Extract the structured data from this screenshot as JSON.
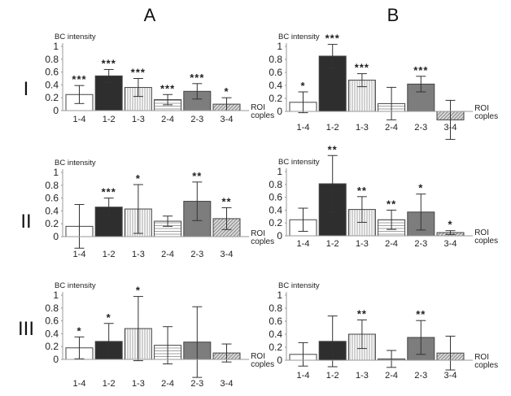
{
  "figure": {
    "column_labels": [
      "A",
      "B"
    ],
    "row_labels": [
      "I",
      "II",
      "III"
    ]
  },
  "chart_data": [
    {
      "type": "bar",
      "panel": "A-I",
      "column": "A",
      "row": "I",
      "ylabel": "BC intensity",
      "xlabel": [
        "ROI",
        "coples"
      ],
      "ylim": [
        0,
        1
      ],
      "yticks": [
        "0",
        "0.2",
        "0.4",
        "0.6",
        "0.8",
        "1"
      ],
      "categories": [
        "1-4",
        "1-2",
        "1-3",
        "2-4",
        "2-3",
        "3-4"
      ],
      "values": [
        0.25,
        0.54,
        0.36,
        0.17,
        0.3,
        0.1
      ],
      "error": [
        0.14,
        0.1,
        0.14,
        0.08,
        0.12,
        0.1
      ],
      "significance": [
        "***",
        "***",
        "***",
        "***",
        "***",
        "*"
      ]
    },
    {
      "type": "bar",
      "panel": "B-I",
      "column": "B",
      "row": "I",
      "ylabel": "BC intensity",
      "xlabel": [
        "ROI",
        "coples"
      ],
      "ylim": [
        0,
        1
      ],
      "yticks": [
        "0",
        "0.2",
        "0.4",
        "0.6",
        "0.8",
        "1"
      ],
      "categories": [
        "1-4",
        "1-2",
        "1-3",
        "2-4",
        "2-3",
        "3-4"
      ],
      "values": [
        0.14,
        0.85,
        0.48,
        0.12,
        0.42,
        -0.13
      ],
      "error": [
        0.16,
        0.18,
        0.1,
        0.25,
        0.12,
        0.3
      ],
      "significance": [
        "*",
        "***",
        "***",
        "",
        "***",
        ""
      ]
    },
    {
      "type": "bar",
      "panel": "A-II",
      "column": "A",
      "row": "II",
      "ylabel": "BC intensity",
      "xlabel": [
        "ROI",
        "coples"
      ],
      "ylim": [
        0,
        1
      ],
      "yticks": [
        "0",
        "0.2",
        "0.4",
        "0.6",
        "0.8",
        "1"
      ],
      "categories": [
        "1-4",
        "1-2",
        "1-3",
        "2-4",
        "2-3",
        "3-4"
      ],
      "values": [
        0.16,
        0.46,
        0.43,
        0.24,
        0.55,
        0.28
      ],
      "error": [
        0.34,
        0.14,
        0.38,
        0.08,
        0.3,
        0.17
      ],
      "significance": [
        "",
        "***",
        "*",
        "",
        "**",
        "**"
      ]
    },
    {
      "type": "bar",
      "panel": "B-II",
      "column": "B",
      "row": "II",
      "ylabel": "BC intensity",
      "xlabel": [
        "ROI",
        "coples"
      ],
      "ylim": [
        0,
        1
      ],
      "yticks": [
        "0",
        "0.2",
        "0.4",
        "0.6",
        "0.8",
        "1"
      ],
      "categories": [
        "1-4",
        "1-2",
        "1-3",
        "2-4",
        "2-3",
        "3-4"
      ],
      "values": [
        0.25,
        0.81,
        0.41,
        0.25,
        0.37,
        0.05
      ],
      "error": [
        0.18,
        0.44,
        0.2,
        0.15,
        0.28,
        0.03
      ],
      "significance": [
        "",
        "**",
        "**",
        "**",
        "*",
        "*"
      ]
    },
    {
      "type": "bar",
      "panel": "A-III",
      "column": "A",
      "row": "III",
      "ylabel": "BC intensity",
      "xlabel": [
        "ROI",
        "coples"
      ],
      "ylim": [
        0,
        1
      ],
      "yticks": [
        "0",
        "0.2",
        "0.4",
        "0.6",
        "0.8",
        "1"
      ],
      "categories": [
        "1-4",
        "1-2",
        "1-3",
        "2-4",
        "2-3",
        "3-4"
      ],
      "values": [
        0.18,
        0.28,
        0.48,
        0.22,
        0.27,
        0.1
      ],
      "error": [
        0.17,
        0.28,
        0.5,
        0.29,
        0.55,
        0.14
      ],
      "significance": [
        "*",
        "*",
        "*",
        "",
        "",
        ""
      ]
    },
    {
      "type": "bar",
      "panel": "B-III",
      "column": "B",
      "row": "III",
      "ylabel": "BC intensity",
      "xlabel": [
        "ROI",
        "coples"
      ],
      "ylim": [
        0,
        1
      ],
      "yticks": [
        "0",
        "0.2",
        "0.4",
        "0.6",
        "0.8",
        "1"
      ],
      "categories": [
        "1-4",
        "1-2",
        "1-3",
        "2-4",
        "2-3",
        "3-4"
      ],
      "values": [
        0.09,
        0.29,
        0.4,
        0.02,
        0.35,
        0.11
      ],
      "error": [
        0.18,
        0.39,
        0.22,
        0.13,
        0.26,
        0.26
      ],
      "significance": [
        "",
        "",
        "**",
        "",
        "**",
        ""
      ]
    }
  ],
  "styles": {
    "bar_fills": [
      "white",
      "#2e2e2e",
      "vstripe",
      "hstripe",
      "#7d7d7d",
      "hatch"
    ],
    "axis_color": "#999999",
    "edge_color": "#444444"
  }
}
